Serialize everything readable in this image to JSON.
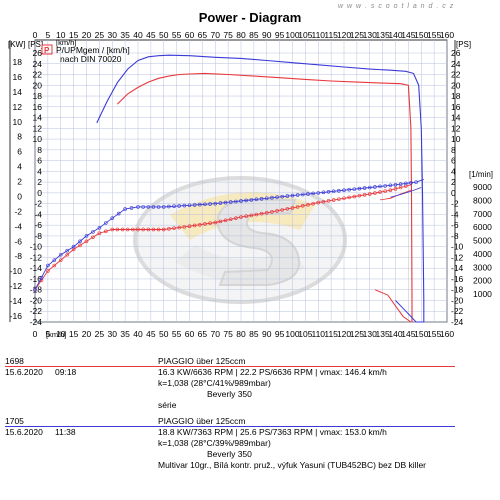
{
  "watermark": "w w w . s c o o t l a n d . c z",
  "chart_data": {
    "type": "line",
    "title": "Power - Diagram",
    "legend": [
      "P/UPMgem / [km/h]",
      "nach DIN 70020"
    ],
    "x_label_top": "[km/h]",
    "x_label_bottom": "[km/h]",
    "x_ticks": [
      0,
      5,
      10,
      15,
      20,
      25,
      30,
      35,
      40,
      45,
      50,
      55,
      60,
      65,
      70,
      75,
      80,
      85,
      90,
      95,
      100,
      105,
      110,
      115,
      120,
      125,
      130,
      135,
      140,
      145,
      150,
      155,
      160
    ],
    "x_range": [
      0,
      160
    ],
    "y_left_label": "[KW]",
    "y_left_ticks": [
      18,
      16,
      14,
      12,
      10,
      8,
      6,
      4,
      2,
      0,
      -2,
      -4,
      -6,
      -8,
      -10,
      -12,
      -14,
      -16
    ],
    "y_left_inner_label": "[PS]",
    "y_left_inner_ticks": [
      26,
      24,
      22,
      20,
      18,
      16,
      14,
      12,
      10,
      8,
      6,
      4,
      2,
      0,
      -2,
      -4,
      -6,
      -8,
      -10,
      -12,
      -14,
      -16,
      -18,
      -20,
      -22,
      -24
    ],
    "y_right_inner_label": "[PS]",
    "y_right_inner_ticks": [
      26,
      24,
      22,
      20,
      18,
      16,
      14,
      12,
      10,
      8,
      6,
      4,
      2,
      0,
      -2,
      -4,
      -6,
      -8,
      -10,
      -12,
      -14,
      -16,
      -18,
      -20,
      -22,
      -24
    ],
    "y_right_label": "[1/min]",
    "y_right_ticks": [
      9000,
      8000,
      7000,
      6000,
      5000,
      4000,
      3000,
      2000,
      1000
    ],
    "series": [
      {
        "name": "1698",
        "color": "#e8373a",
        "power_ps": [
          [
            32,
            16.5
          ],
          [
            36,
            18.4
          ],
          [
            40,
            19.6
          ],
          [
            44,
            20.6
          ],
          [
            48,
            21.3
          ],
          [
            52,
            21.7
          ],
          [
            56,
            22.0
          ],
          [
            60,
            22.1
          ],
          [
            66,
            22.2
          ],
          [
            75,
            22.0
          ],
          [
            85,
            21.7
          ],
          [
            95,
            21.4
          ],
          [
            105,
            21.1
          ],
          [
            115,
            20.8
          ],
          [
            125,
            20.6
          ],
          [
            135,
            20.4
          ],
          [
            142,
            20.3
          ],
          [
            145,
            20.0
          ],
          [
            146,
            12
          ],
          [
            146.2,
            0
          ],
          [
            146.4,
            -20
          ],
          [
            146.4,
            -24
          ]
        ],
        "rpm": [
          [
            0,
            -18
          ],
          [
            5,
            -14.5
          ],
          [
            10,
            -12.5
          ],
          [
            15,
            -10.5
          ],
          [
            20,
            -9
          ],
          [
            25,
            -7.5
          ],
          [
            30,
            -6.8
          ],
          [
            40,
            -6.8
          ],
          [
            50,
            -6.8
          ],
          [
            60,
            -6.2
          ],
          [
            70,
            -5.5
          ],
          [
            80,
            -4.5
          ],
          [
            90,
            -3.7
          ],
          [
            100,
            -2.8
          ],
          [
            110,
            -1.8
          ],
          [
            120,
            -1.0
          ],
          [
            130,
            -0.2
          ],
          [
            138,
            0.5
          ],
          [
            142,
            1.0
          ],
          [
            146,
            1.5
          ]
        ],
        "decel_ps": [
          [
            132,
            -18
          ],
          [
            137,
            -19
          ],
          [
            140,
            -21
          ],
          [
            143,
            -23
          ],
          [
            146,
            -24
          ]
        ],
        "decel_rpm": [
          [
            134,
            -1.3
          ],
          [
            138,
            -1.0
          ],
          [
            142,
            -0.2
          ],
          [
            146,
            0.5
          ]
        ]
      },
      {
        "name": "1705",
        "color": "#3a3ad8",
        "power_ps": [
          [
            24,
            13
          ],
          [
            28,
            17
          ],
          [
            32,
            20.5
          ],
          [
            36,
            23
          ],
          [
            40,
            24.6
          ],
          [
            44,
            25.3
          ],
          [
            48,
            25.5
          ],
          [
            52,
            25.6
          ],
          [
            60,
            25.5
          ],
          [
            70,
            25.2
          ],
          [
            80,
            25.0
          ],
          [
            90,
            24.6
          ],
          [
            100,
            24.2
          ],
          [
            110,
            23.8
          ],
          [
            120,
            23.4
          ],
          [
            130,
            23.0
          ],
          [
            138,
            22.8
          ],
          [
            144,
            22.6
          ],
          [
            147,
            22.2
          ],
          [
            149,
            20
          ],
          [
            150,
            12
          ],
          [
            150.5,
            0
          ],
          [
            151,
            -20
          ],
          [
            151,
            -24
          ]
        ],
        "rpm": [
          [
            0,
            -18
          ],
          [
            5,
            -13.5
          ],
          [
            10,
            -11.5
          ],
          [
            15,
            -10
          ],
          [
            20,
            -8
          ],
          [
            25,
            -6.5
          ],
          [
            30,
            -4.7
          ],
          [
            35,
            -3.0
          ],
          [
            40,
            -2.6
          ],
          [
            50,
            -2.6
          ],
          [
            60,
            -2.3
          ],
          [
            70,
            -2.0
          ],
          [
            80,
            -1.5
          ],
          [
            90,
            -1.0
          ],
          [
            100,
            -0.5
          ],
          [
            110,
            0.0
          ],
          [
            120,
            0.5
          ],
          [
            130,
            1.0
          ],
          [
            140,
            1.5
          ],
          [
            148,
            2.0
          ],
          [
            151,
            2.5
          ]
        ],
        "decel_ps": [
          [
            140,
            -20
          ],
          [
            144,
            -22
          ],
          [
            148,
            -24
          ],
          [
            151,
            -24
          ]
        ],
        "decel_rpm": [
          [
            138,
            -0.8
          ],
          [
            142,
            -0.3
          ],
          [
            146,
            0.3
          ],
          [
            150,
            1.0
          ]
        ]
      }
    ]
  },
  "runs": [
    {
      "id": "1698",
      "date": "15.6.2020",
      "time": "09:18",
      "color": "#e8373a",
      "lines": [
        "PIAGGIO über 125ccm",
        "16.3 KW/6636 RPM  |  22.2 PS/6636 RPM  |  vmax: 146.4 km/h",
        "k=1,038 (28°C/41%/989mbar)",
        "Beverly 350",
        "série"
      ]
    },
    {
      "id": "1705",
      "date": "15.6.2020",
      "time": "11:38",
      "color": "#3a3ad8",
      "lines": [
        "PIAGGIO über 125ccm",
        "18.8 KW/7363 RPM  |  25.6 PS/7363 RPM  |  vmax: 153.0 km/h",
        "k=1,038 (28°C/39%/989mbar)",
        "Beverly 350",
        "Multivar 10gr., Bílá kontr. pruž., výfuk Yasuni (TUB452BC) bez DB killer"
      ]
    }
  ]
}
